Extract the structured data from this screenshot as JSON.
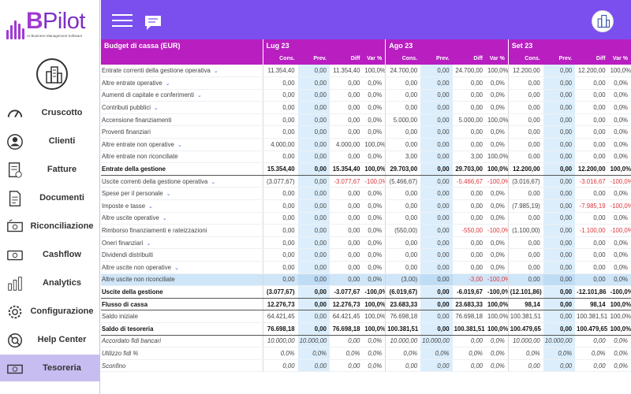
{
  "logo": {
    "b": "B",
    "pilot": "Pilot",
    "subtitle": "AI Business Management Software"
  },
  "nav": [
    {
      "label": "Cruscotto",
      "icon": "gauge-icon"
    },
    {
      "label": "Clienti",
      "icon": "user-icon"
    },
    {
      "label": "Fatture",
      "icon": "invoice-icon"
    },
    {
      "label": "Documenti",
      "icon": "document-icon"
    },
    {
      "label": "Riconciliazione",
      "icon": "reconcile-icon"
    },
    {
      "label": "Cashflow",
      "icon": "cash-icon"
    },
    {
      "label": "Analytics",
      "icon": "bar-chart-icon"
    },
    {
      "label": "Configurazione",
      "icon": "gear-icon"
    },
    {
      "label": "Help Center",
      "icon": "support-icon"
    },
    {
      "label": "Tesoreria",
      "icon": "bank-icon",
      "active": true
    }
  ],
  "colors": {
    "header": "#7b4fee",
    "table_header": "#b81ec0",
    "active_nav": "#c8bdf1",
    "negative": "#d9363e"
  },
  "table": {
    "title": "Budget di cassa (EUR)",
    "months": [
      "Lug 23",
      "Ago 23",
      "Set 23"
    ],
    "subcols": [
      "Cons.",
      "Prev.",
      "Diff",
      "Var %"
    ],
    "rows": [
      {
        "label": "Entrate correnti della gestione operativa",
        "expand": true,
        "cells": [
          "11.354,40",
          "0,00",
          "11.354,40",
          "100,0%",
          "24.700,00",
          "0,00",
          "24.700,00",
          "100,0%",
          "12.200,00",
          "0,00",
          "12.200,00",
          "100,0%"
        ]
      },
      {
        "label": "Altre entrate operative",
        "expand": true,
        "cells": [
          "0,00",
          "0,00",
          "0,00",
          "0,0%",
          "0,00",
          "0,00",
          "0,00",
          "0,0%",
          "0,00",
          "0,00",
          "0,00",
          "0,0%"
        ]
      },
      {
        "label": "Aumenti di capitale e conferimenti",
        "expand": true,
        "cells": [
          "0,00",
          "0,00",
          "0,00",
          "0,0%",
          "0,00",
          "0,00",
          "0,00",
          "0,0%",
          "0,00",
          "0,00",
          "0,00",
          "0,0%"
        ]
      },
      {
        "label": "Contributi pubblici",
        "expand": true,
        "cells": [
          "0,00",
          "0,00",
          "0,00",
          "0,0%",
          "0,00",
          "0,00",
          "0,00",
          "0,0%",
          "0,00",
          "0,00",
          "0,00",
          "0,0%"
        ]
      },
      {
        "label": "Accensione finanziamenti",
        "cells": [
          "0,00",
          "0,00",
          "0,00",
          "0,0%",
          "5.000,00",
          "0,00",
          "5.000,00",
          "100,0%",
          "0,00",
          "0,00",
          "0,00",
          "0,0%"
        ]
      },
      {
        "label": "Proventi finanziari",
        "cells": [
          "0,00",
          "0,00",
          "0,00",
          "0,0%",
          "0,00",
          "0,00",
          "0,00",
          "0,0%",
          "0,00",
          "0,00",
          "0,00",
          "0,0%"
        ]
      },
      {
        "label": "Altre entrate non operative",
        "expand": true,
        "cells": [
          "4.000,00",
          "0,00",
          "4.000,00",
          "100,0%",
          "0,00",
          "0,00",
          "0,00",
          "0,0%",
          "0,00",
          "0,00",
          "0,00",
          "0,0%"
        ]
      },
      {
        "label": "Altre entrate non riconciliate",
        "cells": [
          "0,00",
          "0,00",
          "0,00",
          "0,0%",
          "3,00",
          "0,00",
          "3,00",
          "100,0%",
          "0,00",
          "0,00",
          "0,00",
          "0,0%"
        ]
      },
      {
        "label": "Entrate della gestione",
        "type": "total",
        "cells": [
          "15.354,40",
          "0,00",
          "15.354,40",
          "100,0%",
          "29.703,00",
          "0,00",
          "29.703,00",
          "100,0%",
          "12.200,00",
          "0,00",
          "12.200,00",
          "100,0%"
        ]
      },
      {
        "label": "Uscite correnti della gestione operativa",
        "expand": true,
        "cells": [
          "(3.077,67)",
          "0,00",
          "-3.077,67",
          "-100,0%",
          "(5.466,67)",
          "0,00",
          "-5.466,67",
          "-100,0%",
          "(3.016,67)",
          "0,00",
          "-3.016,67",
          "-100,0%"
        ]
      },
      {
        "label": "Spese per il personale",
        "expand": true,
        "cells": [
          "0,00",
          "0,00",
          "0,00",
          "0,0%",
          "0,00",
          "0,00",
          "0,00",
          "0,0%",
          "0,00",
          "0,00",
          "0,00",
          "0,0%"
        ]
      },
      {
        "label": "Imposte e tasse",
        "expand": true,
        "cells": [
          "0,00",
          "0,00",
          "0,00",
          "0,0%",
          "0,00",
          "0,00",
          "0,00",
          "0,0%",
          "(7.985,19)",
          "0,00",
          "-7.985,19",
          "-100,0%"
        ]
      },
      {
        "label": "Altre uscite operative",
        "expand": true,
        "cells": [
          "0,00",
          "0,00",
          "0,00",
          "0,0%",
          "0,00",
          "0,00",
          "0,00",
          "0,0%",
          "0,00",
          "0,00",
          "0,00",
          "0,0%"
        ]
      },
      {
        "label": "Rimborso finanziamenti e rateizzazioni",
        "cells": [
          "0,00",
          "0,00",
          "0,00",
          "0,0%",
          "(550,00)",
          "0,00",
          "-550,00",
          "-100,0%",
          "(1.100,00)",
          "0,00",
          "-1.100,00",
          "-100,0%"
        ]
      },
      {
        "label": "Oneri finanziari",
        "expand": true,
        "cells": [
          "0,00",
          "0,00",
          "0,00",
          "0,0%",
          "0,00",
          "0,00",
          "0,00",
          "0,0%",
          "0,00",
          "0,00",
          "0,00",
          "0,0%"
        ]
      },
      {
        "label": "Dividendi distribuiti",
        "cells": [
          "0,00",
          "0,00",
          "0,00",
          "0,0%",
          "0,00",
          "0,00",
          "0,00",
          "0,0%",
          "0,00",
          "0,00",
          "0,00",
          "0,0%"
        ]
      },
      {
        "label": "Altre uscite non operative",
        "expand": true,
        "cells": [
          "0,00",
          "0,00",
          "0,00",
          "0,0%",
          "0,00",
          "0,00",
          "0,00",
          "0,0%",
          "0,00",
          "0,00",
          "0,00",
          "0,0%"
        ]
      },
      {
        "label": "Altre uscite non riconciliate",
        "type": "hl",
        "cells": [
          "0,00",
          "0,00",
          "0,00",
          "0,0%",
          "(3,00)",
          "0,00",
          "-3,00",
          "-100,0%",
          "0,00",
          "0,00",
          "0,00",
          "0,0%"
        ]
      },
      {
        "label": "Uscite della gestione",
        "type": "total",
        "cells": [
          "(3.077,67)",
          "0,00",
          "-3.077,67",
          "-100,0%",
          "(6.019,67)",
          "0,00",
          "-6.019,67",
          "-100,0%",
          "(12.101,86)",
          "0,00",
          "-12.101,86",
          "-100,0%"
        ]
      },
      {
        "label": "Flusso di cassa",
        "type": "total",
        "cells": [
          "12.276,73",
          "0,00",
          "12.276,73",
          "100,0%",
          "23.683,33",
          "0,00",
          "23.683,33",
          "100,0%",
          "98,14",
          "0,00",
          "98,14",
          "100,0%"
        ]
      },
      {
        "label": "Saldo iniziale",
        "cells": [
          "64.421,45",
          "0,00",
          "64.421,45",
          "100,0%",
          "76.698,18",
          "0,00",
          "76.698,18",
          "100,0%",
          "100.381,51",
          "0,00",
          "100.381,51",
          "100,0%"
        ]
      },
      {
        "label": "Saldo di tesoreria",
        "type": "total",
        "cells": [
          "76.698,18",
          "0,00",
          "76.698,18",
          "100,0%",
          "100.381,51",
          "0,00",
          "100.381,51",
          "100,0%",
          "100.479,65",
          "0,00",
          "100.479,65",
          "100,0%"
        ]
      },
      {
        "label": "Accordato fidi bancari",
        "type": "ital",
        "cells": [
          "10.000,00",
          "10.000,00",
          "0,00",
          "0,0%",
          "10.000,00",
          "10.000,00",
          "0,00",
          "0,0%",
          "10.000,00",
          "10.000,00",
          "0,00",
          "0,0%"
        ]
      },
      {
        "label": "Utilizzo fidi %",
        "type": "ital",
        "cells": [
          "0,0%",
          "0,0%",
          "0,0%",
          "0,0%",
          "0,0%",
          "0,0%",
          "0,0%",
          "0,0%",
          "0,0%",
          "0,0%",
          "0,0%",
          "0,0%"
        ]
      },
      {
        "label": "Sconfino",
        "type": "ital",
        "cells": [
          "0,00",
          "0,00",
          "0,00",
          "0,0%",
          "0,00",
          "0,00",
          "0,00",
          "0,0%",
          "0,00",
          "0,00",
          "0,00",
          "0,0%"
        ]
      }
    ]
  }
}
